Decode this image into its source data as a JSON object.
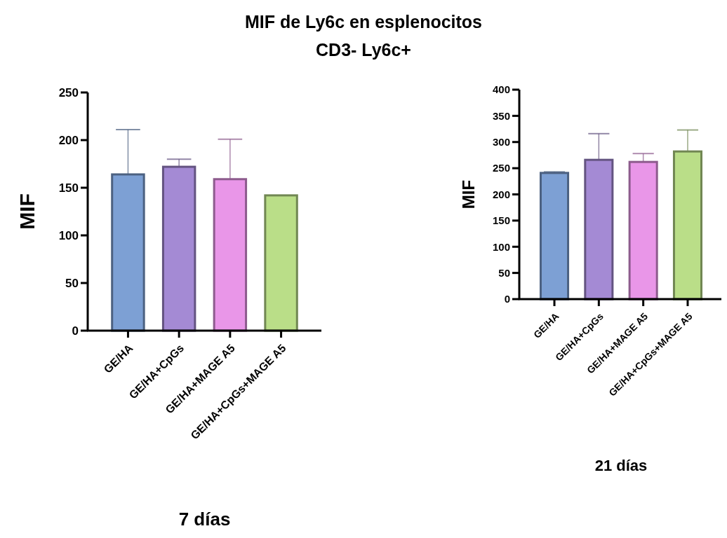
{
  "chart_data": [
    {
      "type": "bar",
      "title": "MIF de Ly6c en esplenocitos",
      "subtitle": "CD3- Ly6c+",
      "xlabel": "7 días",
      "ylabel": "MIF",
      "categories": [
        "GE/HA",
        "GE/HA+CpGs",
        "GE/HA+MAGE A5",
        "GE/HA+CpGs+MAGE A5"
      ],
      "values": [
        164,
        172,
        159,
        142
      ],
      "errors": [
        [
          164,
          211
        ],
        [
          172,
          180
        ],
        [
          159,
          201
        ],
        null
      ],
      "colors": [
        "#7da0d4",
        "#a48ad4",
        "#e996e8",
        "#bade88"
      ],
      "ylim": [
        0,
        250
      ],
      "yticks": [
        0,
        50,
        100,
        150,
        200,
        250
      ],
      "grid": false
    },
    {
      "type": "bar",
      "xlabel": "21 días",
      "ylabel": "MIF",
      "categories": [
        "GE/HA",
        "GE/HA+CpGs",
        "GE/HA+MAGE A5",
        "GE/HA+CpGs+MAGE A5"
      ],
      "values": [
        241,
        266,
        262,
        282
      ],
      "errors": [
        [
          241,
          243
        ],
        [
          266,
          316
        ],
        [
          262,
          278
        ],
        [
          282,
          323
        ]
      ],
      "colors": [
        "#7da0d4",
        "#a48ad4",
        "#e996e8",
        "#bade88"
      ],
      "ylim": [
        0,
        400
      ],
      "yticks": [
        0,
        50,
        100,
        150,
        200,
        250,
        300,
        350,
        400
      ],
      "grid": false
    }
  ]
}
